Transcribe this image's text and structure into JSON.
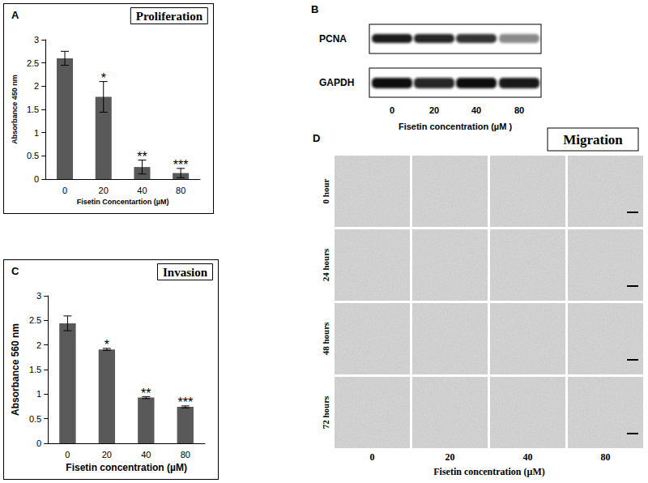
{
  "chart_data": [
    {
      "panel_label": "A",
      "type": "bar",
      "title": "Proliferation",
      "categories": [
        "0",
        "20",
        "40",
        "80"
      ],
      "values": [
        2.6,
        1.77,
        0.26,
        0.13
      ],
      "errors": [
        0.15,
        0.33,
        0.15,
        0.1
      ],
      "annotations": [
        null,
        "*",
        "**",
        "***"
      ],
      "color": "#595959",
      "xlabel": "Fisetin Concentartion (µM)",
      "ylabel": "Absorbance 450 nm",
      "ylim": [
        0,
        3
      ],
      "yticks": [
        0,
        0.5,
        1,
        1.5,
        2,
        2.5,
        3
      ],
      "grid": false
    },
    {
      "panel_label": "C",
      "type": "bar",
      "title": "Invasion",
      "categories": [
        "0",
        "20",
        "40",
        "80"
      ],
      "values": [
        2.44,
        1.91,
        0.93,
        0.74
      ],
      "errors": [
        0.15,
        0.02,
        0.02,
        0.02
      ],
      "annotations": [
        null,
        "*",
        "**",
        "***"
      ],
      "color": "#595959",
      "xlabel": "Fisetin concentration (µM)",
      "ylabel": "Absorbance 560 nm",
      "ylim": [
        0,
        3
      ],
      "yticks": [
        0,
        0.5,
        1,
        1.5,
        2,
        2.5,
        3
      ],
      "grid": false
    }
  ],
  "blot": {
    "panel_label": "B",
    "rows": [
      {
        "label": "PCNA",
        "intensity": [
          0.95,
          0.9,
          0.85,
          0.5
        ]
      },
      {
        "label": "GAPDH",
        "intensity": [
          1,
          0.9,
          1,
          0.95
        ]
      }
    ],
    "lanes": [
      "0",
      "20",
      "40",
      "80"
    ],
    "xlabel": "Fisetin concentration (µM )"
  },
  "migration": {
    "panel_label": "D",
    "title": "Migration",
    "rows": [
      "0 hour",
      "24 hours",
      "48 hours",
      "72 hours"
    ],
    "columns": [
      "0",
      "20",
      "40",
      "80"
    ],
    "xlabel": "Fisetin concentration (µM)"
  }
}
